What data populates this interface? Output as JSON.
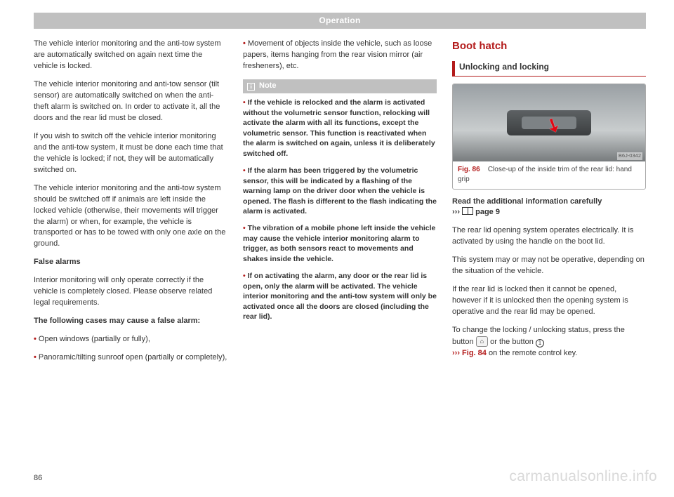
{
  "header": "Operation",
  "page_number": "86",
  "watermark": "carmanualsonline.info",
  "colors": {
    "accent_red": "#b31b1b",
    "band_gray": "#c0c0c0",
    "text": "#333333"
  },
  "col1": {
    "p1": "The vehicle interior monitoring and the anti-tow system are automatically switched on again next time the vehicle is locked.",
    "p2": "The vehicle interior monitoring and anti-tow sensor (tilt sensor) are automatically switched on when the anti-theft alarm is switched on. In order to activate it, all the doors and the rear lid must be closed.",
    "p3": "If you wish to switch off the vehicle interior monitoring and the anti-tow system, it must be done each time that the vehicle is locked; if not, they will be automatically switched on.",
    "p4": "The vehicle interior monitoring and the anti-tow system should be switched off if animals are left inside the locked vehicle (otherwise, their movements will trigger the alarm) or when, for example, the vehicle is transported or has to be towed with only one axle on the ground.",
    "h_false": "False alarms",
    "p5": "Interior monitoring will only operate correctly if the vehicle is completely closed. Please observe related legal requirements.",
    "h_cases": "The following cases may cause a false alarm:",
    "b1": "Open windows (partially or fully),",
    "b2": "Panoramic/tilting sunroof open (partially or completely),"
  },
  "col2": {
    "b3": "Movement of objects inside the vehicle, such as loose papers, items hanging from the rear vision mirror (air fresheners), etc.",
    "note_label": "Note",
    "n1": "If the vehicle is relocked and the alarm is activated without the volumetric sensor function, relocking will activate the alarm with all its functions, except the volumetric sensor. This function is reactivated when the alarm is switched on again, unless it is deliberately switched off.",
    "n2": "If the alarm has been triggered by the volumetric sensor, this will be indicated by a flashing of the warning lamp on the driver door when the vehicle is opened. The flash is different to the flash indicating the alarm is activated.",
    "n3": "The vibration of a mobile phone left inside the vehicle may cause the vehicle interior monitoring alarm to trigger, as both sensors react to movements and shakes inside the vehicle.",
    "n4": "If on activating the alarm, any door or the rear lid is open, only the alarm will be activated. The vehicle interior monitoring and the anti-tow system will only be activated once all the doors are closed (including the rear lid)."
  },
  "col3": {
    "section_title": "Boot hatch",
    "subsection": "Unlocking and locking",
    "fig_code": "B6J-0342",
    "fig_label": "Fig. 86",
    "fig_caption": "Close-up of the inside trim of the rear lid: hand grip",
    "read_more": "Read the additional information carefully",
    "read_more_ref": "page 9",
    "p1": "The rear lid opening system operates electrically. It is activated by using the handle on the boot lid.",
    "p2": "This system may or may not be operative, depending on the situation of the vehicle.",
    "p3": "If the rear lid is locked then it cannot be opened, however if it is unlocked then the opening system is operative and the rear lid may be opened.",
    "p4a": "To change the locking / unlocking status, press the button ",
    "p4b": " or the button ",
    "btn_symbol": "⌂",
    "circle_num": "1",
    "ref_fig": "››› Fig. 84",
    "ref_tail": " on the remote control key."
  }
}
